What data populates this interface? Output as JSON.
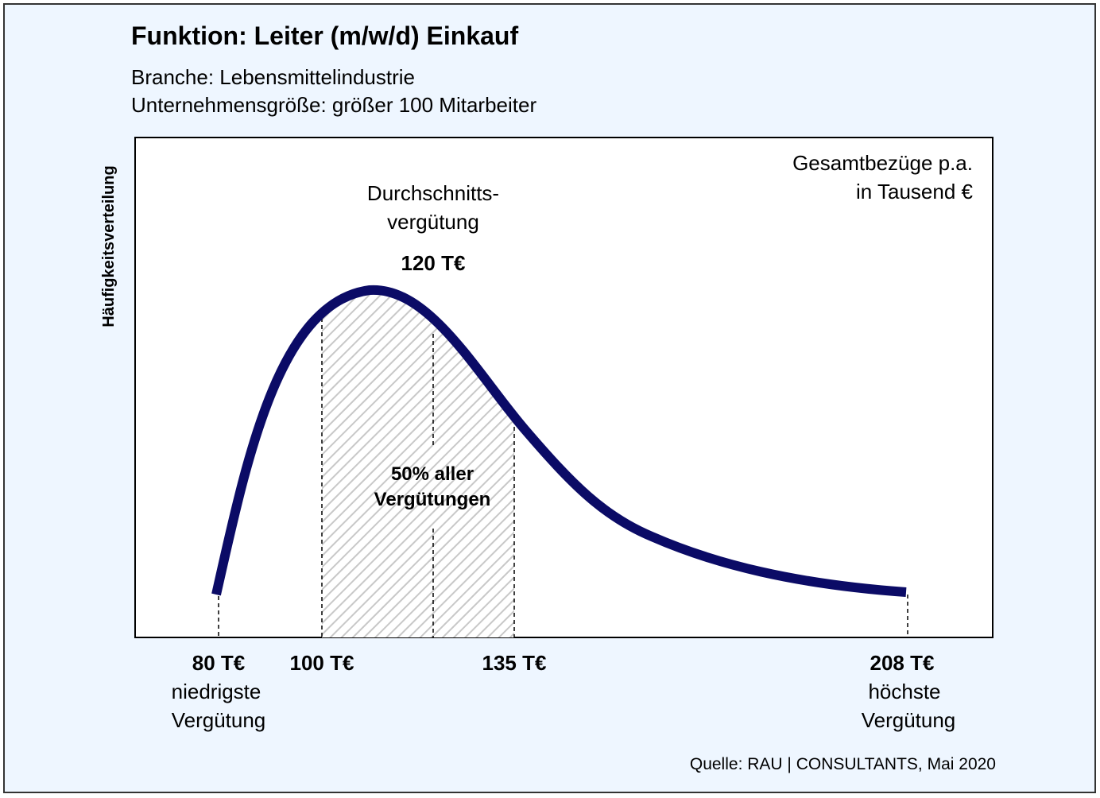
{
  "header": {
    "title": "Funktion: Leiter (m/w/d) Einkauf",
    "subtitle_lines": [
      "Branche: Lebensmittelindustrie",
      "Unternehmensgröße: größer 100 Mitarbeiter"
    ]
  },
  "y_axis_label": "Häufigkeitsverteilung",
  "unit_note": [
    "Gesamtbezüge p.a.",
    "in Tausend €"
  ],
  "average": {
    "label_lines": [
      "Durchschnitts-",
      "vergütung"
    ],
    "value": "120 T€"
  },
  "middle_range": [
    "50% aller",
    "Vergütungen"
  ],
  "markers": [
    {
      "label": "80 T€",
      "caption_lines": [
        "niedrigste",
        "Vergütung"
      ]
    },
    {
      "label": "100 T€"
    },
    {
      "label": "135 T€"
    },
    {
      "label": "208 T€",
      "caption_lines": [
        "höchste",
        "Vergütung"
      ]
    }
  ],
  "source": "Quelle: RAU | CONSULTANTS, Mai 2020"
}
